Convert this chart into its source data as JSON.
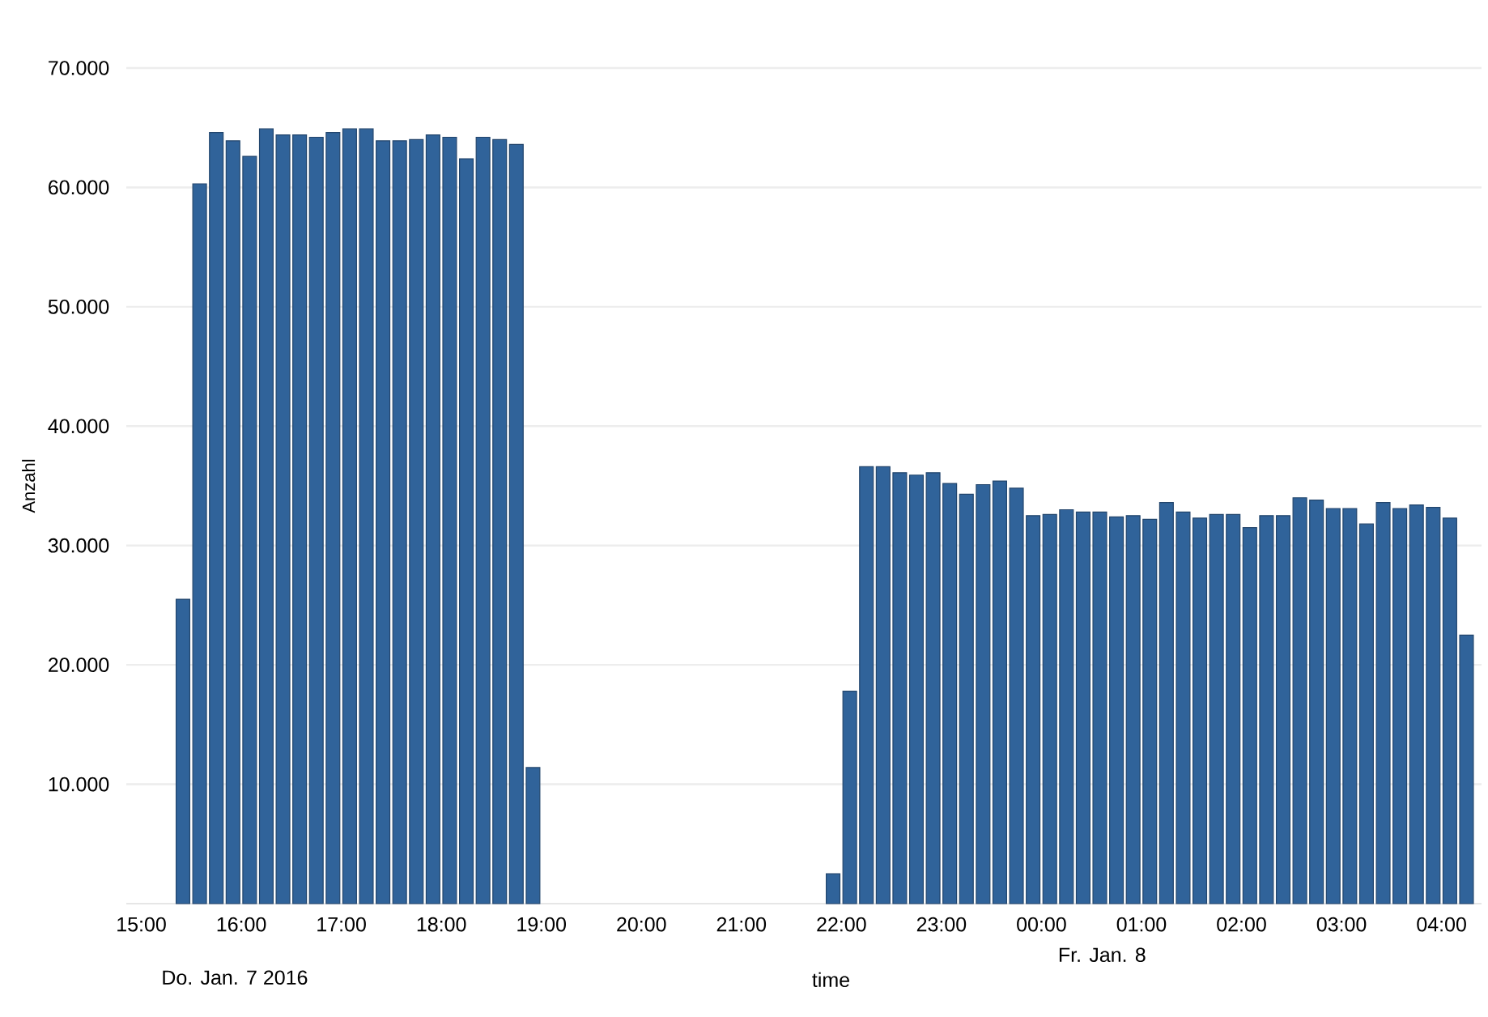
{
  "chart_data": {
    "type": "bar",
    "xlabel": "time",
    "ylabel": "Anzahl",
    "annotations": [
      "Do. Jan. 7 2016",
      "Fr. Jan. 8"
    ],
    "x": [
      "2016-01-07T15:25",
      "2016-01-07T15:35",
      "2016-01-07T15:45",
      "2016-01-07T15:55",
      "2016-01-07T16:05",
      "2016-01-07T16:15",
      "2016-01-07T16:25",
      "2016-01-07T16:35",
      "2016-01-07T16:45",
      "2016-01-07T16:55",
      "2016-01-07T17:05",
      "2016-01-07T17:15",
      "2016-01-07T17:25",
      "2016-01-07T17:35",
      "2016-01-07T17:45",
      "2016-01-07T17:55",
      "2016-01-07T18:05",
      "2016-01-07T18:15",
      "2016-01-07T18:25",
      "2016-01-07T18:35",
      "2016-01-07T18:45",
      "2016-01-07T18:55",
      "2016-01-07T21:55",
      "2016-01-07T22:05",
      "2016-01-07T22:15",
      "2016-01-07T22:25",
      "2016-01-07T22:35",
      "2016-01-07T22:45",
      "2016-01-07T22:55",
      "2016-01-07T23:05",
      "2016-01-07T23:15",
      "2016-01-07T23:25",
      "2016-01-07T23:35",
      "2016-01-07T23:45",
      "2016-01-07T23:55",
      "2016-01-08T00:05",
      "2016-01-08T00:15",
      "2016-01-08T00:25",
      "2016-01-08T00:35",
      "2016-01-08T00:45",
      "2016-01-08T00:55",
      "2016-01-08T01:05",
      "2016-01-08T01:15",
      "2016-01-08T01:25",
      "2016-01-08T01:35",
      "2016-01-08T01:45",
      "2016-01-08T01:55",
      "2016-01-08T02:05",
      "2016-01-08T02:15",
      "2016-01-08T02:25",
      "2016-01-08T02:35",
      "2016-01-08T02:45",
      "2016-01-08T02:55",
      "2016-01-08T03:05",
      "2016-01-08T03:15",
      "2016-01-08T03:25",
      "2016-01-08T03:35",
      "2016-01-08T03:45",
      "2016-01-08T03:55",
      "2016-01-08T04:05",
      "2016-01-08T04:15"
    ],
    "values": [
      25500,
      60300,
      64600,
      63900,
      62600,
      64900,
      64400,
      64400,
      64200,
      64600,
      64900,
      64900,
      63900,
      63900,
      64000,
      64400,
      64200,
      62400,
      64200,
      64000,
      63600,
      11400,
      2500,
      17800,
      36600,
      36600,
      36100,
      35900,
      36100,
      35200,
      34300,
      35100,
      35400,
      34800,
      32500,
      32600,
      33000,
      32800,
      32800,
      32400,
      32500,
      32200,
      33600,
      32800,
      32300,
      32600,
      32600,
      31500,
      32500,
      32500,
      34000,
      33800,
      33100,
      33100,
      31800,
      33600,
      33100,
      33400,
      33200,
      32300,
      22500
    ],
    "color": "#30639a",
    "xlim": [
      "2016-01-07T14:51",
      "2016-01-08T04:24"
    ],
    "xticks": [
      {
        "value": "2016-01-07T15:00",
        "label": "15:00"
      },
      {
        "value": "2016-01-07T16:00",
        "label": "16:00"
      },
      {
        "value": "2016-01-07T17:00",
        "label": "17:00"
      },
      {
        "value": "2016-01-07T18:00",
        "label": "18:00"
      },
      {
        "value": "2016-01-07T19:00",
        "label": "19:00"
      },
      {
        "value": "2016-01-07T20:00",
        "label": "20:00"
      },
      {
        "value": "2016-01-07T21:00",
        "label": "21:00"
      },
      {
        "value": "2016-01-07T22:00",
        "label": "22:00"
      },
      {
        "value": "2016-01-07T23:00",
        "label": "23:00"
      },
      {
        "value": "2016-01-08T00:00",
        "label": "00:00"
      },
      {
        "value": "2016-01-08T01:00",
        "label": "01:00"
      },
      {
        "value": "2016-01-08T02:00",
        "label": "02:00"
      },
      {
        "value": "2016-01-08T03:00",
        "label": "03:00"
      },
      {
        "value": "2016-01-08T04:00",
        "label": "04:00"
      }
    ],
    "ylim": [
      0,
      70000
    ],
    "yticks": [
      {
        "value": 10000,
        "label": "10.000"
      },
      {
        "value": 20000,
        "label": "20.000"
      },
      {
        "value": 30000,
        "label": "30.000"
      },
      {
        "value": 40000,
        "label": "40.000"
      },
      {
        "value": 50000,
        "label": "50.000"
      },
      {
        "value": 60000,
        "label": "60.000"
      },
      {
        "value": 70000,
        "label": "70.000"
      }
    ],
    "grid": "y"
  }
}
